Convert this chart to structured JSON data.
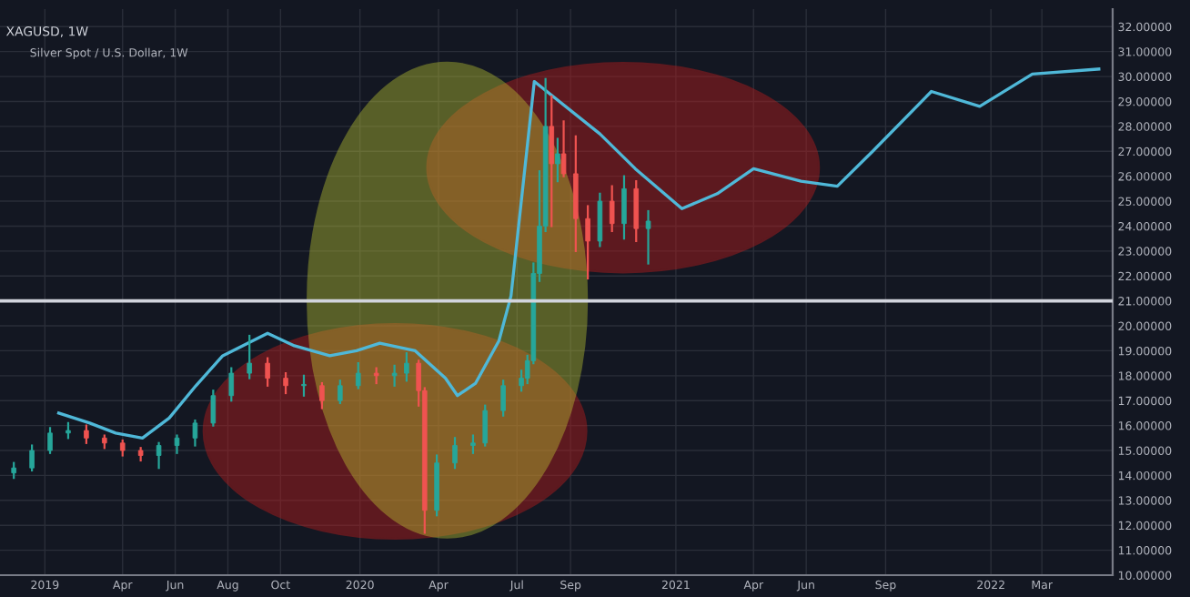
{
  "chart_data": {
    "type": "candlestick",
    "title": "XAGUSD, 1W",
    "subtitle": "Silver Spot / U.S. Dollar, 1W",
    "x": [
      "2018-11-26",
      "2018-12-17",
      "2019-01-07",
      "2019-01-28",
      "2019-02-18",
      "2019-03-11",
      "2019-04-01",
      "2019-04-22",
      "2019-05-13",
      "2019-06-03",
      "2019-06-24",
      "2019-07-15",
      "2019-08-05",
      "2019-08-26",
      "2019-09-16",
      "2019-10-07",
      "2019-10-28",
      "2019-11-18",
      "2019-12-09",
      "2019-12-30",
      "2020-01-20",
      "2020-02-10",
      "2020-02-24",
      "2020-03-09",
      "2020-03-16",
      "2020-03-30",
      "2020-04-20",
      "2020-05-11",
      "2020-05-25",
      "2020-06-15",
      "2020-07-06",
      "2020-07-13",
      "2020-07-20",
      "2020-07-27",
      "2020-08-03",
      "2020-08-10",
      "2020-08-17",
      "2020-08-24",
      "2020-09-07",
      "2020-09-21",
      "2020-10-05",
      "2020-10-19",
      "2020-11-02",
      "2020-11-16",
      "2020-11-30"
    ],
    "ohlc": [
      [
        14.1,
        14.5,
        13.9,
        14.3
      ],
      [
        14.3,
        15.2,
        14.2,
        15.0
      ],
      [
        15.0,
        15.9,
        14.9,
        15.7
      ],
      [
        15.7,
        16.1,
        15.5,
        15.8
      ],
      [
        15.8,
        16.0,
        15.3,
        15.5
      ],
      [
        15.5,
        15.6,
        15.1,
        15.3
      ],
      [
        15.3,
        15.4,
        14.8,
        15.0
      ],
      [
        15.0,
        15.1,
        14.6,
        14.8
      ],
      [
        14.8,
        15.3,
        14.3,
        15.2
      ],
      [
        15.2,
        15.6,
        14.9,
        15.5
      ],
      [
        15.5,
        16.2,
        15.2,
        16.1
      ],
      [
        16.1,
        17.4,
        16.0,
        17.2
      ],
      [
        17.2,
        18.3,
        17.0,
        18.1
      ],
      [
        18.1,
        19.6,
        17.9,
        18.5
      ],
      [
        18.5,
        18.7,
        17.6,
        17.9
      ],
      [
        17.9,
        18.1,
        17.3,
        17.6
      ],
      [
        17.6,
        18.0,
        17.2,
        17.6
      ],
      [
        17.6,
        17.7,
        16.7,
        17.0
      ],
      [
        17.0,
        17.8,
        16.9,
        17.6
      ],
      [
        17.6,
        18.5,
        17.5,
        18.1
      ],
      [
        18.1,
        18.3,
        17.7,
        18.0
      ],
      [
        18.0,
        18.4,
        17.6,
        18.1
      ],
      [
        18.1,
        18.9,
        17.8,
        18.5
      ],
      [
        18.5,
        18.6,
        16.8,
        17.4
      ],
      [
        17.4,
        17.5,
        11.7,
        12.6
      ],
      [
        12.6,
        14.8,
        12.4,
        14.5
      ],
      [
        14.5,
        15.5,
        14.3,
        15.2
      ],
      [
        15.2,
        15.6,
        14.9,
        15.3
      ],
      [
        15.3,
        16.8,
        15.2,
        16.6
      ],
      [
        16.6,
        17.8,
        16.4,
        17.6
      ],
      [
        17.6,
        18.2,
        17.4,
        17.9
      ],
      [
        17.9,
        18.8,
        17.7,
        18.6
      ],
      [
        18.6,
        22.5,
        18.5,
        22.1
      ],
      [
        22.1,
        26.2,
        21.8,
        24.0
      ],
      [
        24.0,
        29.9,
        23.8,
        28.0
      ],
      [
        28.0,
        29.2,
        24.0,
        26.5
      ],
      [
        26.5,
        27.5,
        25.8,
        26.9
      ],
      [
        26.9,
        28.2,
        26.0,
        26.1
      ],
      [
        26.1,
        27.6,
        23.0,
        24.3
      ],
      [
        24.3,
        24.8,
        21.9,
        23.4
      ],
      [
        23.4,
        25.3,
        23.2,
        25.0
      ],
      [
        25.0,
        25.6,
        23.8,
        24.1
      ],
      [
        24.1,
        26.0,
        23.5,
        25.5
      ],
      [
        25.5,
        25.8,
        23.4,
        23.9
      ],
      [
        23.9,
        24.6,
        22.5,
        24.2
      ]
    ],
    "colors": [
      "#26a69a",
      "#26a69a",
      "#26a69a",
      "#26a69a",
      "#ef5350",
      "#ef5350",
      "#ef5350",
      "#ef5350",
      "#26a69a",
      "#26a69a",
      "#26a69a",
      "#26a69a",
      "#26a69a",
      "#26a69a",
      "#ef5350",
      "#ef5350",
      "#26a69a",
      "#ef5350",
      "#26a69a",
      "#26a69a",
      "#ef5350",
      "#26a69a",
      "#26a69a",
      "#ef5350",
      "#ef5350",
      "#26a69a",
      "#26a69a",
      "#26a69a",
      "#26a69a",
      "#26a69a",
      "#26a69a",
      "#26a69a",
      "#26a69a",
      "#26a69a",
      "#26a69a",
      "#ef5350",
      "#26a69a",
      "#ef5350",
      "#ef5350",
      "#ef5350",
      "#26a69a",
      "#ef5350",
      "#26a69a",
      "#ef5350",
      "#26a69a"
    ],
    "series": [
      {
        "type": "line",
        "color": "#4fb8d8",
        "x": [
          "2019-01-17",
          "2019-02-22",
          "2019-03-24",
          "2019-04-24",
          "2019-05-25",
          "2019-06-25",
          "2019-07-26",
          "2019-09-16",
          "2019-10-17",
          "2019-11-27",
          "2019-12-28",
          "2020-01-24",
          "2020-03-05",
          "2020-04-09",
          "2020-04-23",
          "2020-05-14",
          "2020-06-10",
          "2020-06-24",
          "2020-07-21",
          "2020-10-05",
          "2020-11-15",
          "2021-01-08",
          "2021-02-18",
          "2021-04-01",
          "2021-05-26",
          "2021-07-07",
          "2021-08-17",
          "2021-10-24",
          "2021-12-19",
          "2022-02-18",
          "2022-05-06"
        ],
        "values": [
          16.5,
          16.1,
          15.7,
          15.5,
          16.3,
          17.6,
          18.8,
          19.7,
          19.2,
          18.8,
          19.0,
          19.3,
          19.0,
          17.9,
          17.2,
          17.7,
          19.4,
          21.2,
          29.8,
          27.7,
          26.3,
          24.7,
          25.3,
          26.3,
          25.8,
          25.6,
          27.0,
          29.4,
          28.8,
          30.1,
          30.3
        ]
      }
    ],
    "ref_lines": [
      {
        "axis": "y",
        "value": 21,
        "color": "#d1d4dc"
      }
    ],
    "xlim": [
      "2018-11-10",
      "2022-05-22"
    ],
    "xticks": [
      {
        "value": "2019-01-01",
        "label": "2019"
      },
      {
        "value": "2019-04-01",
        "label": "Apr"
      },
      {
        "value": "2019-06-01",
        "label": "Jun"
      },
      {
        "value": "2019-08-01",
        "label": "Aug"
      },
      {
        "value": "2019-10-01",
        "label": "Oct"
      },
      {
        "value": "2020-01-01",
        "label": "2020"
      },
      {
        "value": "2020-04-01",
        "label": "Apr"
      },
      {
        "value": "2020-07-01",
        "label": "Jul"
      },
      {
        "value": "2020-09-01",
        "label": "Sep"
      },
      {
        "value": "2021-01-01",
        "label": "2021"
      },
      {
        "value": "2021-04-01",
        "label": "Apr"
      },
      {
        "value": "2021-06-01",
        "label": "Jun"
      },
      {
        "value": "2021-09-01",
        "label": "Sep"
      },
      {
        "value": "2022-01-01",
        "label": "2022"
      },
      {
        "value": "2022-03-01",
        "label": "Mar"
      }
    ],
    "ylim": [
      10,
      32.7
    ],
    "yticks": [
      {
        "value": 10,
        "label": "10.00000"
      },
      {
        "value": 11,
        "label": "11.00000"
      },
      {
        "value": 12,
        "label": "12.00000"
      },
      {
        "value": 13,
        "label": "13.00000"
      },
      {
        "value": 14,
        "label": "14.00000"
      },
      {
        "value": 15,
        "label": "15.00000"
      },
      {
        "value": 16,
        "label": "16.00000"
      },
      {
        "value": 17,
        "label": "17.00000"
      },
      {
        "value": 18,
        "label": "18.00000"
      },
      {
        "value": 19,
        "label": "19.00000"
      },
      {
        "value": 20,
        "label": "20.00000"
      },
      {
        "value": 21,
        "label": "21.00000"
      },
      {
        "value": 22,
        "label": "22.00000"
      },
      {
        "value": 23,
        "label": "23.00000"
      },
      {
        "value": 24,
        "label": "24.00000"
      },
      {
        "value": 25,
        "label": "25.00000"
      },
      {
        "value": 26,
        "label": "26.00000"
      },
      {
        "value": 27,
        "label": "27.00000"
      },
      {
        "value": 28,
        "label": "28.00000"
      },
      {
        "value": 29,
        "label": "29.00000"
      },
      {
        "value": 30,
        "label": "30.00000"
      },
      {
        "value": 31,
        "label": "31.00000"
      },
      {
        "value": 32,
        "label": "32.00000"
      }
    ],
    "grid": true
  }
}
